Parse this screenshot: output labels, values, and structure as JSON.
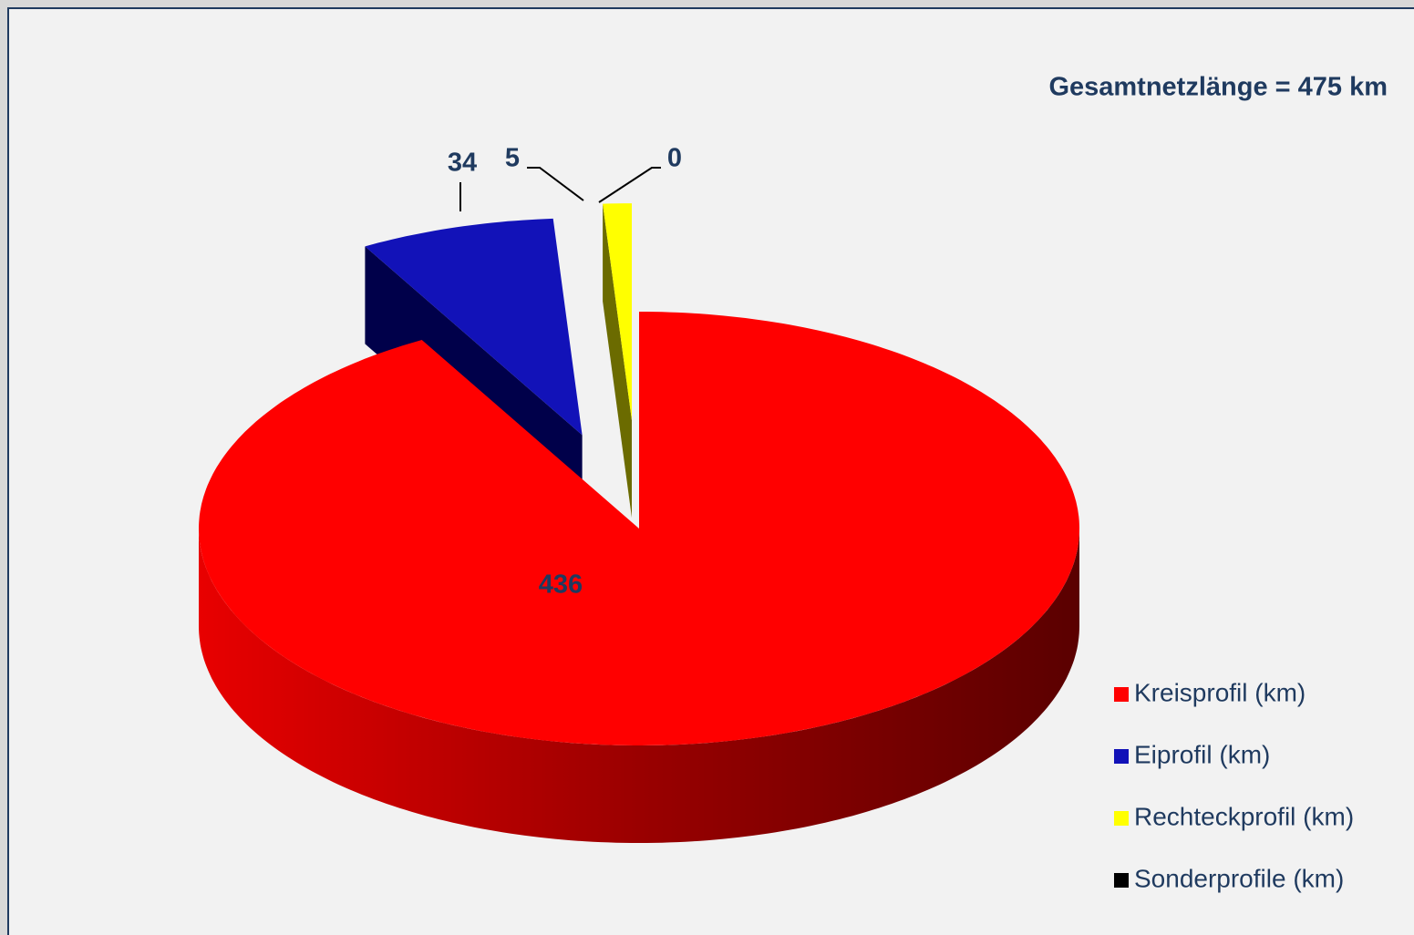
{
  "chart_data": {
    "type": "pie",
    "annotation": "Gesamtnetzlänge = 475 km",
    "categories": [
      "Kreisprofil (km)",
      "Eiprofil (km)",
      "Rechteckprofil (km)",
      "Sonderprofile (km)"
    ],
    "values": [
      436,
      34,
      5,
      0
    ],
    "colors": [
      "#ff0000",
      "#1212b8",
      "#ffff00",
      "#000000"
    ],
    "legend": "right"
  }
}
